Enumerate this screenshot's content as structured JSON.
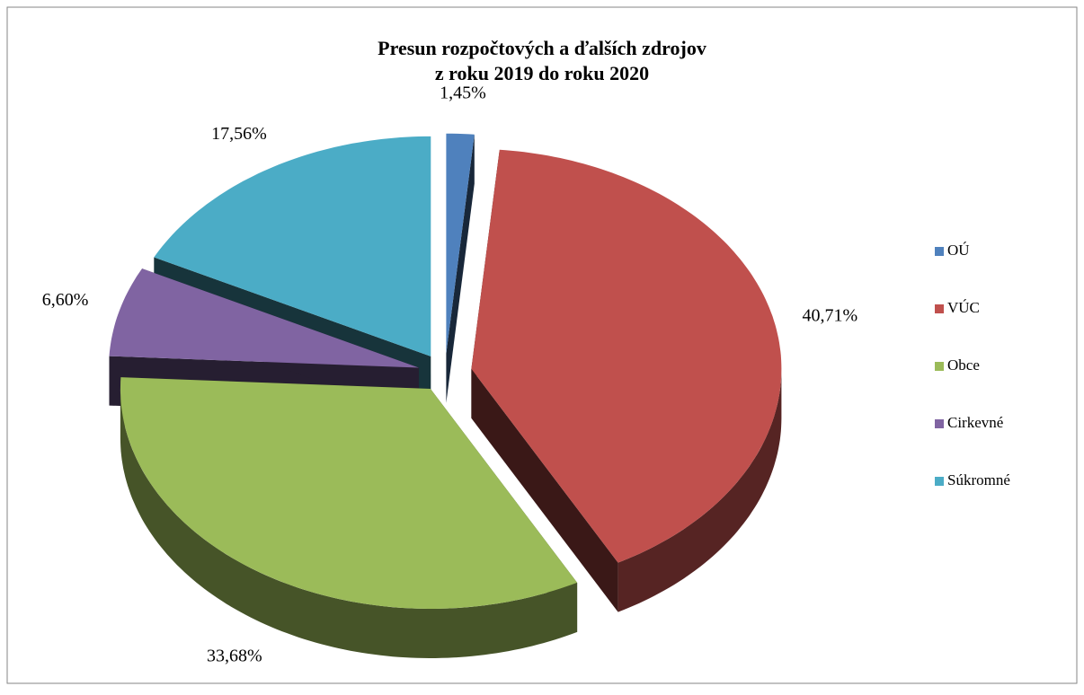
{
  "chart_data": {
    "type": "pie",
    "title": [
      "Presun rozpočtových a ďalších zdrojov",
      "z roku 2019 do roku 2020"
    ],
    "categories": [
      "OÚ",
      "VÚC",
      "Obce",
      "Cirkevné",
      "Súkromné"
    ],
    "values": [
      1.45,
      40.71,
      33.68,
      6.6,
      17.56
    ],
    "value_labels": [
      "1,45%",
      "40,71%",
      "33,68%",
      "6,60%",
      "17,56%"
    ],
    "colors": [
      "#4f81bd",
      "#c0504d",
      "#9bbb59",
      "#8064a2",
      "#4bacc6"
    ],
    "legend": "right"
  }
}
